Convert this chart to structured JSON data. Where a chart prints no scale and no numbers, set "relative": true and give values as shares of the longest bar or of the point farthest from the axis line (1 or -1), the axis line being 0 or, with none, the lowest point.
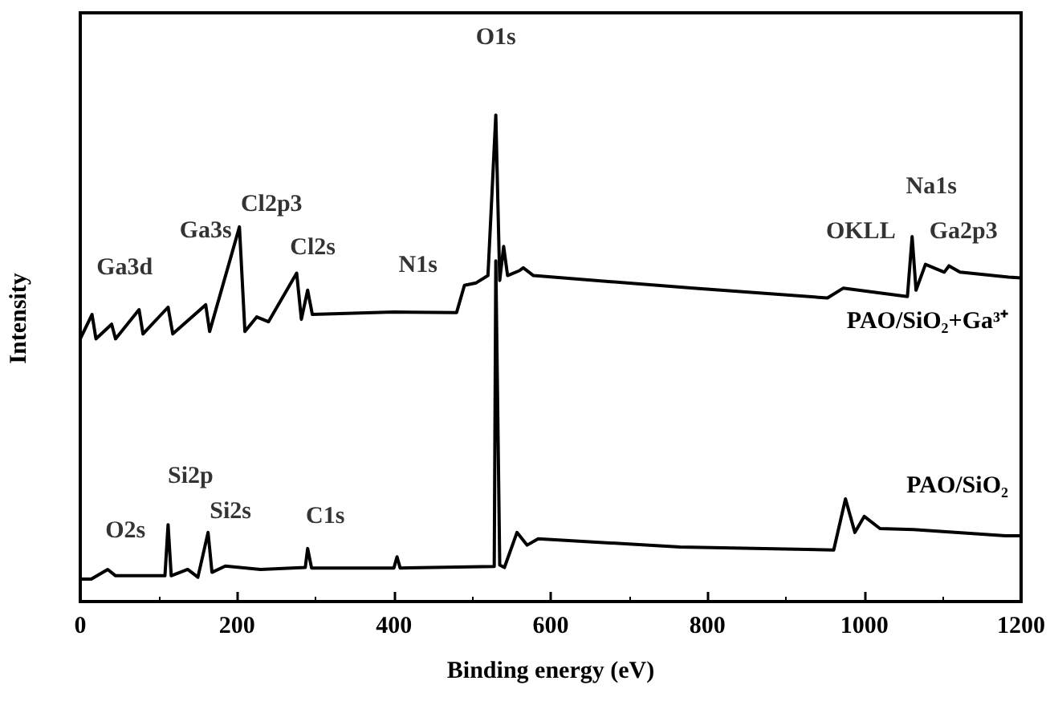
{
  "chart_data": {
    "type": "line",
    "relative": true,
    "xlabel": "Binding energy (eV)",
    "ylabel": "Intensity",
    "xlim": [
      0,
      1200
    ],
    "xticks": [
      0,
      200,
      400,
      600,
      800,
      1000,
      1200
    ],
    "legend": false,
    "grid": false,
    "marker": "none",
    "series": [
      {
        "name": "PAO/SiO₂+Ga³⁺",
        "color": "#000000",
        "x": [
          0,
          15,
          20,
          40,
          45,
          75,
          80,
          112,
          118,
          160,
          165,
          203,
          210,
          225,
          240,
          276,
          282,
          290,
          296,
          400,
          480,
          490,
          505,
          520,
          530,
          535,
          540,
          545,
          560,
          565,
          578,
          782,
          953,
          973,
          1055,
          1061,
          1066,
          1078,
          1102,
          1108,
          1122,
          1184,
          1200
        ],
        "values": [
          0.54,
          0.59,
          0.54,
          0.57,
          0.54,
          0.6,
          0.55,
          0.605,
          0.55,
          0.61,
          0.555,
          0.77,
          0.555,
          0.585,
          0.575,
          0.675,
          0.58,
          0.64,
          0.59,
          0.595,
          0.594,
          0.65,
          0.655,
          0.67,
          1.0,
          0.66,
          0.73,
          0.67,
          0.68,
          0.686,
          0.67,
          0.644,
          0.624,
          0.644,
          0.627,
          0.75,
          0.64,
          0.693,
          0.677,
          0.69,
          0.677,
          0.667,
          0.665
        ]
      },
      {
        "name": "PAO/SiO₂",
        "color": "#000000",
        "x": [
          0,
          14,
          35,
          45,
          108,
          112,
          116,
          137,
          150,
          163,
          168,
          185,
          230,
          287,
          290,
          295,
          400,
          404,
          408,
          528,
          530,
          535,
          541,
          557,
          570,
          584,
          765,
          961,
          976,
          988,
          1000,
          1020,
          1063,
          1180,
          1200
        ],
        "values": [
          0.046,
          0.046,
          0.066,
          0.053,
          0.053,
          0.158,
          0.053,
          0.066,
          0.05,
          0.142,
          0.06,
          0.073,
          0.066,
          0.07,
          0.109,
          0.069,
          0.069,
          0.092,
          0.069,
          0.072,
          0.7,
          0.075,
          0.07,
          0.142,
          0.116,
          0.129,
          0.112,
          0.106,
          0.211,
          0.142,
          0.175,
          0.15,
          0.148,
          0.135,
          0.135
        ]
      }
    ],
    "annotations": [
      {
        "text": "Ga3d",
        "x": 75,
        "y": 0.6
      },
      {
        "text": "Ga3s",
        "x": 160,
        "y": 0.61
      },
      {
        "text": "Cl2p3",
        "x": 203,
        "y": 0.77
      },
      {
        "text": "Cl2s",
        "x": 276,
        "y": 0.675
      },
      {
        "text": "N1s",
        "x": 400,
        "y": 0.595
      },
      {
        "text": "O1s",
        "x": 530,
        "y": 1.0
      },
      {
        "text": "OKLL",
        "x": 973,
        "y": 0.644
      },
      {
        "text": "Na1s",
        "x": 1061,
        "y": 0.75
      },
      {
        "text": "Ga2p3",
        "x": 1108,
        "y": 0.69
      },
      {
        "text": "O2s",
        "x": 35,
        "y": 0.066
      },
      {
        "text": "Si2p",
        "x": 112,
        "y": 0.158
      },
      {
        "text": "Si2s",
        "x": 163,
        "y": 0.142
      },
      {
        "text": "C1s",
        "x": 290,
        "y": 0.109
      }
    ]
  }
}
